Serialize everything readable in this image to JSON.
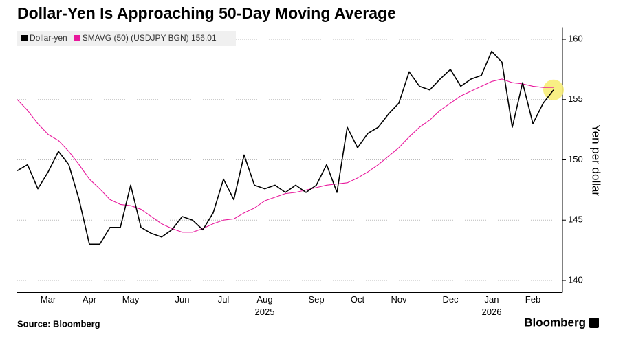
{
  "chart_data": {
    "type": "line",
    "title": "Dollar-Yen Is Approaching 50-Day Moving Average",
    "source": "Source: Bloomberg",
    "brand": "Bloomberg",
    "y_label": "Yen per dollar",
    "categories": [
      null,
      null,
      null,
      "Mar",
      null,
      null,
      null,
      "Apr",
      null,
      null,
      null,
      "May",
      null,
      null,
      null,
      null,
      "Jun",
      null,
      null,
      null,
      "Jul",
      null,
      null,
      null,
      "Aug",
      null,
      null,
      null,
      null,
      "Sep",
      null,
      null,
      null,
      "Oct",
      null,
      null,
      null,
      "Nov",
      null,
      null,
      null,
      null,
      "Dec",
      null,
      null,
      null,
      "Jan",
      null,
      null,
      null,
      "Feb",
      null,
      null
    ],
    "year_labels": [
      {
        "label": "2025",
        "under": "Aug"
      },
      {
        "label": "2026",
        "under": "Jan"
      }
    ],
    "series": [
      {
        "name": "Dollar-yen",
        "color": "#000000",
        "values": [
          149.1,
          149.6,
          147.6,
          149.0,
          150.7,
          149.6,
          146.7,
          143.0,
          143.0,
          144.4,
          144.4,
          147.9,
          144.4,
          143.9,
          143.6,
          144.2,
          145.3,
          145.0,
          144.2,
          145.6,
          148.4,
          146.7,
          150.4,
          147.9,
          147.6,
          147.9,
          147.3,
          147.9,
          147.3,
          147.9,
          149.6,
          147.3,
          152.7,
          151.0,
          152.2,
          152.7,
          153.8,
          154.7,
          157.3,
          156.1,
          155.8,
          156.7,
          157.5,
          156.1,
          156.7,
          157.0,
          159.0,
          158.1,
          152.7,
          156.4,
          153.0,
          154.7,
          155.8
        ]
      },
      {
        "name": "SMAVG (50) (USDJPY BGN) 156.01",
        "color": "#e8189c",
        "values": [
          155.0,
          154.1,
          153.0,
          152.1,
          151.6,
          150.7,
          149.6,
          148.4,
          147.6,
          146.7,
          146.3,
          146.2,
          145.9,
          145.3,
          144.7,
          144.3,
          144.0,
          144.0,
          144.3,
          144.7,
          145.0,
          145.1,
          145.6,
          146.0,
          146.6,
          146.9,
          147.2,
          147.3,
          147.5,
          147.7,
          147.9,
          148.0,
          148.1,
          148.5,
          149.0,
          149.6,
          150.3,
          151.0,
          151.9,
          152.7,
          153.3,
          154.1,
          154.7,
          155.3,
          155.7,
          156.1,
          156.5,
          156.7,
          156.4,
          156.3,
          156.1,
          156.0,
          156.01
        ]
      }
    ],
    "ylim": [
      139,
      161
    ],
    "yticks": [
      140,
      145,
      150,
      155,
      160
    ],
    "grid": true,
    "highlight_last": true,
    "highlight_color": "#f7ec6e"
  }
}
